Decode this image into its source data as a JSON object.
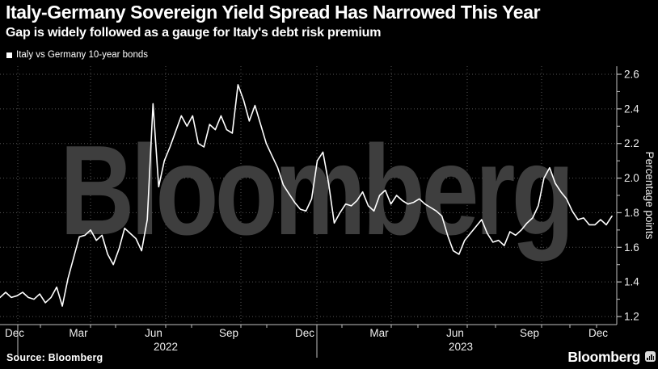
{
  "header": {
    "title": "Italy-Germany Sovereign Yield Spread Has Narrowed This Year",
    "subtitle": "Gap is widely followed as a gauge for Italy's debt risk premium"
  },
  "legend": {
    "label": "Italy vs Germany 10-year bonds",
    "marker": "white-square"
  },
  "watermark": "Bloomberg",
  "footer": {
    "source": "Source: Bloomberg",
    "brand": "Bloomberg",
    "brand_icon": "bar-chart-icon"
  },
  "colors": {
    "background": "#000000",
    "line": "#ffffff",
    "watermark": "#3e3e3e",
    "grid": "#565656",
    "axis": "#c0c0c0",
    "text": "#ededed"
  },
  "chart_data": {
    "type": "line",
    "title": "Italy-Germany Sovereign Yield Spread Has Narrowed This Year",
    "subtitle": "Gap is widely followed as a gauge for Italy's debt risk premium",
    "legend_entries": [
      "Italy vs Germany 10-year bonds"
    ],
    "legend_position": "top-left",
    "grid": true,
    "ylabel": "Percentage points",
    "ylim": [
      1.15,
      2.65
    ],
    "yticks": [
      "1.2",
      "1.4",
      "1.6",
      "1.8",
      "2.0",
      "2.2",
      "2.4",
      "2.6"
    ],
    "x_tick_labels": [
      "Dec",
      "Mar",
      "Jun",
      "Sep",
      "Dec",
      "Mar",
      "Jun",
      "Sep",
      "Dec"
    ],
    "year_labels": [
      "2022",
      "2023"
    ],
    "series": [
      {
        "name": "Italy vs Germany 10-year bonds",
        "dates": [
          "2021-11-10",
          "2021-11-17",
          "2021-11-24",
          "2021-12-01",
          "2021-12-08",
          "2021-12-15",
          "2021-12-22",
          "2021-12-29",
          "2022-01-05",
          "2022-01-12",
          "2022-01-19",
          "2022-01-26",
          "2022-02-02",
          "2022-02-09",
          "2022-02-16",
          "2022-02-23",
          "2022-03-02",
          "2022-03-09",
          "2022-03-16",
          "2022-03-23",
          "2022-03-30",
          "2022-04-06",
          "2022-04-13",
          "2022-04-20",
          "2022-04-27",
          "2022-05-04",
          "2022-05-11",
          "2022-05-18",
          "2022-05-25",
          "2022-06-01",
          "2022-06-08",
          "2022-06-15",
          "2022-06-22",
          "2022-06-29",
          "2022-07-06",
          "2022-07-13",
          "2022-07-20",
          "2022-07-27",
          "2022-08-03",
          "2022-08-10",
          "2022-08-17",
          "2022-08-24",
          "2022-08-31",
          "2022-09-07",
          "2022-09-14",
          "2022-09-21",
          "2022-09-28",
          "2022-10-05",
          "2022-10-12",
          "2022-10-19",
          "2022-10-26",
          "2022-11-02",
          "2022-11-09",
          "2022-11-16",
          "2022-11-23",
          "2022-11-30",
          "2022-12-07",
          "2022-12-14",
          "2022-12-21",
          "2022-12-28",
          "2023-01-04",
          "2023-01-11",
          "2023-01-18",
          "2023-01-25",
          "2023-02-01",
          "2023-02-08",
          "2023-02-15",
          "2023-02-22",
          "2023-03-01",
          "2023-03-08",
          "2023-03-15",
          "2023-03-22",
          "2023-03-29",
          "2023-04-05",
          "2023-04-12",
          "2023-04-19",
          "2023-04-26",
          "2023-05-03",
          "2023-05-10",
          "2023-05-17",
          "2023-05-24",
          "2023-05-31",
          "2023-06-07",
          "2023-06-14",
          "2023-06-21",
          "2023-06-28",
          "2023-07-05",
          "2023-07-12",
          "2023-07-19",
          "2023-07-26",
          "2023-08-02",
          "2023-08-09",
          "2023-08-16",
          "2023-08-23",
          "2023-08-30",
          "2023-09-06",
          "2023-09-13",
          "2023-09-20",
          "2023-09-27",
          "2023-10-04",
          "2023-10-11",
          "2023-10-18",
          "2023-10-25",
          "2023-11-01",
          "2023-11-08",
          "2023-11-15",
          "2023-11-22",
          "2023-11-29",
          "2023-12-06"
        ],
        "values": [
          1.31,
          1.34,
          1.31,
          1.32,
          1.34,
          1.31,
          1.3,
          1.33,
          1.28,
          1.31,
          1.37,
          1.26,
          1.42,
          1.54,
          1.66,
          1.67,
          1.7,
          1.64,
          1.67,
          1.56,
          1.5,
          1.59,
          1.71,
          1.68,
          1.65,
          1.58,
          1.76,
          2.43,
          1.95,
          2.1,
          2.18,
          2.27,
          2.36,
          2.3,
          2.36,
          2.2,
          2.18,
          2.31,
          2.28,
          2.36,
          2.28,
          2.26,
          2.54,
          2.45,
          2.33,
          2.42,
          2.31,
          2.2,
          2.13,
          2.06,
          1.96,
          1.91,
          1.86,
          1.82,
          1.81,
          1.88,
          2.1,
          2.15,
          1.97,
          1.74,
          1.8,
          1.85,
          1.84,
          1.87,
          1.92,
          1.84,
          1.81,
          1.9,
          1.93,
          1.85,
          1.9,
          1.87,
          1.85,
          1.86,
          1.88,
          1.85,
          1.83,
          1.81,
          1.78,
          1.67,
          1.58,
          1.56,
          1.64,
          1.68,
          1.72,
          1.76,
          1.68,
          1.63,
          1.64,
          1.61,
          1.69,
          1.67,
          1.7,
          1.74,
          1.77,
          1.84,
          2.0,
          2.06,
          1.97,
          1.92,
          1.88,
          1.81,
          1.76,
          1.77,
          1.73,
          1.73,
          1.76,
          1.73,
          1.78
        ]
      }
    ]
  }
}
